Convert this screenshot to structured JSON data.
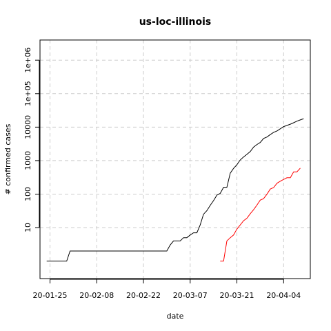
{
  "chart_data": {
    "type": "line",
    "title": "us-loc-illinois",
    "xlabel": "date",
    "ylabel": "# confirmed cases",
    "y_scale": "log",
    "ylim": [
      0.3,
      4000000
    ],
    "grid": true,
    "x_ticks": [
      "20-01-25",
      "20-02-08",
      "20-02-22",
      "20-03-07",
      "20-03-21",
      "20-04-04"
    ],
    "y_ticks": [
      "10",
      "100",
      "1000",
      "10000",
      "1e+05",
      "1e+06"
    ],
    "series": [
      {
        "color": "#000000",
        "points": [
          [
            "20-01-24",
            1
          ],
          [
            "20-01-25",
            1
          ],
          [
            "20-01-26",
            1
          ],
          [
            "20-01-27",
            1
          ],
          [
            "20-01-28",
            1
          ],
          [
            "20-01-29",
            1
          ],
          [
            "20-01-30",
            1
          ],
          [
            "20-01-31",
            2
          ],
          [
            "20-02-05",
            2
          ],
          [
            "20-02-10",
            2
          ],
          [
            "20-02-15",
            2
          ],
          [
            "20-02-20",
            2
          ],
          [
            "20-02-25",
            2
          ],
          [
            "20-02-29",
            2
          ],
          [
            "20-03-01",
            3
          ],
          [
            "20-03-02",
            4
          ],
          [
            "20-03-03",
            4
          ],
          [
            "20-03-04",
            4
          ],
          [
            "20-03-05",
            5
          ],
          [
            "20-03-06",
            5
          ],
          [
            "20-03-07",
            6
          ],
          [
            "20-03-08",
            7
          ],
          [
            "20-03-09",
            7
          ],
          [
            "20-03-10",
            12
          ],
          [
            "20-03-11",
            25
          ],
          [
            "20-03-12",
            32
          ],
          [
            "20-03-13",
            46
          ],
          [
            "20-03-14",
            64
          ],
          [
            "20-03-15",
            93
          ],
          [
            "20-03-16",
            105
          ],
          [
            "20-03-17",
            160
          ],
          [
            "20-03-18",
            160
          ],
          [
            "20-03-19",
            422
          ],
          [
            "20-03-20",
            585
          ],
          [
            "20-03-21",
            753
          ],
          [
            "20-03-22",
            1049
          ],
          [
            "20-03-23",
            1285
          ],
          [
            "20-03-24",
            1535
          ],
          [
            "20-03-25",
            1865
          ],
          [
            "20-03-26",
            2538
          ],
          [
            "20-03-27",
            3026
          ],
          [
            "20-03-28",
            3491
          ],
          [
            "20-03-29",
            4596
          ],
          [
            "20-03-30",
            5056
          ],
          [
            "20-03-31",
            5994
          ],
          [
            "20-04-01",
            6980
          ],
          [
            "20-04-02",
            7695
          ],
          [
            "20-04-03",
            8904
          ],
          [
            "20-04-04",
            10357
          ],
          [
            "20-04-05",
            11256
          ],
          [
            "20-04-06",
            12262
          ],
          [
            "20-04-07",
            13549
          ],
          [
            "20-04-08",
            15078
          ],
          [
            "20-04-09",
            16422
          ],
          [
            "20-04-10",
            17887
          ]
        ]
      },
      {
        "color": "#ff0000",
        "points": [
          [
            "20-03-16",
            1
          ],
          [
            "20-03-17",
            1
          ],
          [
            "20-03-18",
            4
          ],
          [
            "20-03-19",
            5
          ],
          [
            "20-03-20",
            6
          ],
          [
            "20-03-21",
            9
          ],
          [
            "20-03-22",
            12
          ],
          [
            "20-03-23",
            16
          ],
          [
            "20-03-24",
            19
          ],
          [
            "20-03-25",
            26
          ],
          [
            "20-03-26",
            34
          ],
          [
            "20-03-27",
            47
          ],
          [
            "20-03-28",
            66
          ],
          [
            "20-03-29",
            73
          ],
          [
            "20-03-30",
            99
          ],
          [
            "20-03-31",
            141
          ],
          [
            "20-04-01",
            157
          ],
          [
            "20-04-02",
            210
          ],
          [
            "20-04-03",
            243
          ],
          [
            "20-04-04",
            274
          ],
          [
            "20-04-05",
            307
          ],
          [
            "20-04-06",
            307
          ],
          [
            "20-04-07",
            462
          ],
          [
            "20-04-08",
            462
          ],
          [
            "20-04-09",
            596
          ]
        ]
      }
    ]
  }
}
